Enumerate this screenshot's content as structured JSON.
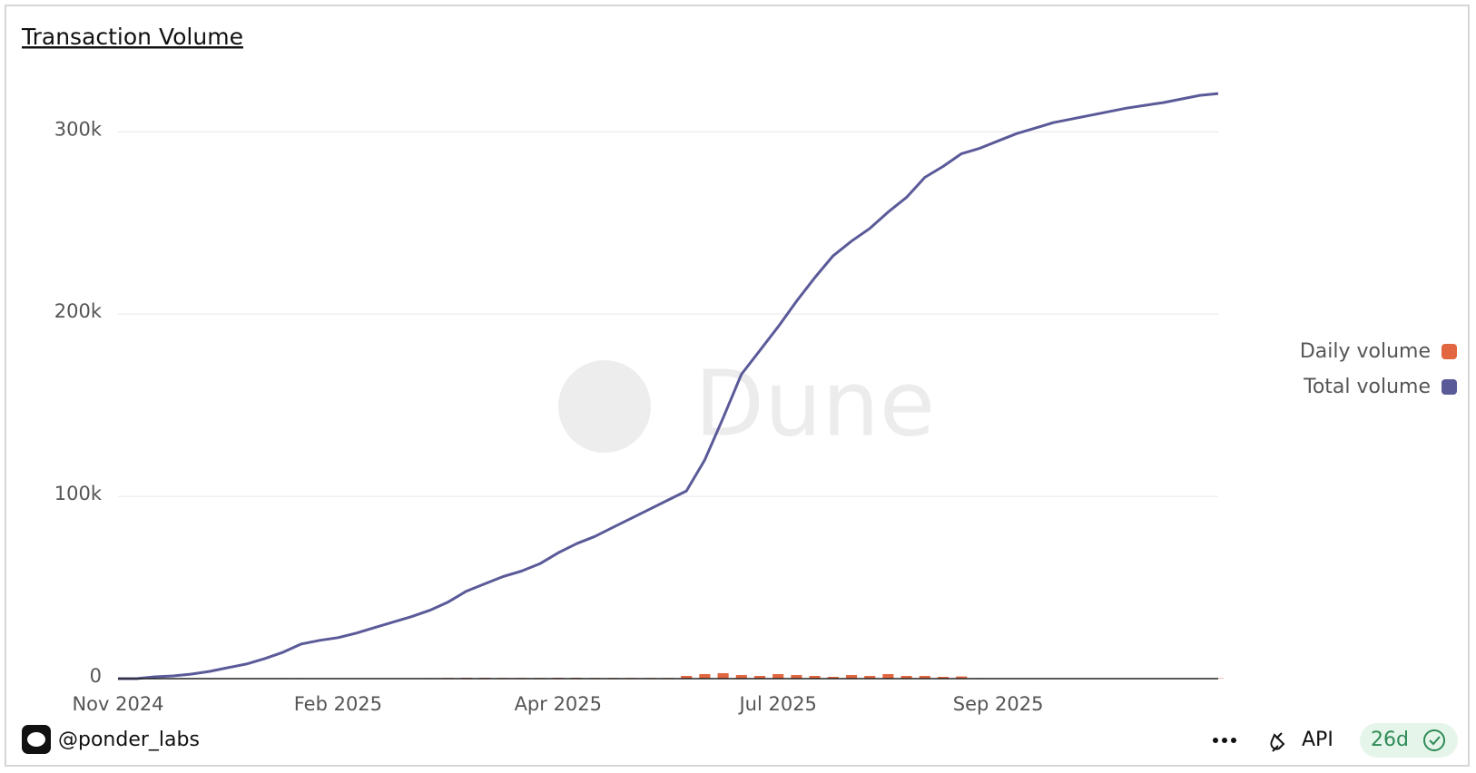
{
  "chart_data": {
    "type": "line_bar",
    "title": "Transaction Volume",
    "categories": [
      "Nov 2024",
      null,
      null,
      null,
      null,
      null,
      null,
      null,
      null,
      null,
      null,
      null,
      "Feb 2025",
      null,
      null,
      null,
      null,
      null,
      null,
      null,
      null,
      null,
      null,
      null,
      "Apr 2025",
      null,
      null,
      null,
      null,
      null,
      null,
      null,
      null,
      null,
      null,
      null,
      "Jul 2025",
      null,
      null,
      null,
      null,
      null,
      null,
      null,
      null,
      null,
      null,
      null,
      "Sep 2025",
      null,
      null,
      null,
      null,
      null,
      null,
      null,
      null,
      null,
      null,
      null,
      null
    ],
    "series": [
      {
        "name": "Daily volume",
        "color": "#e2663f",
        "kind": "bar",
        "values": [
          0,
          100,
          100,
          150,
          150,
          200,
          200,
          250,
          250,
          300,
          300,
          150,
          150,
          200,
          200,
          200,
          250,
          300,
          400,
          500,
          500,
          400,
          400,
          400,
          500,
          500,
          400,
          400,
          400,
          400,
          400,
          1500,
          2500,
          3000,
          2000,
          1500,
          2500,
          2000,
          1500,
          1000,
          2000,
          1500,
          2500,
          1500,
          1500,
          1000,
          1200,
          300,
          200,
          200,
          200,
          150,
          150,
          150,
          150,
          150,
          150,
          150,
          200,
          200,
          200
        ]
      },
      {
        "name": "Total volume",
        "color": "#5b5a99",
        "kind": "line",
        "values": [
          0,
          0,
          1000,
          1500,
          2500,
          4000,
          6000,
          8000,
          11000,
          14500,
          19000,
          21000,
          22500,
          25000,
          28000,
          31000,
          34000,
          37500,
          42000,
          48000,
          52000,
          56000,
          59000,
          63000,
          69000,
          74000,
          78000,
          83000,
          88000,
          93000,
          98000,
          103000,
          120000,
          143000,
          167000,
          180000,
          193000,
          207000,
          220000,
          232000,
          240000,
          247000,
          256000,
          264000,
          275000,
          281000,
          288000,
          291000,
          295000,
          299000,
          302000,
          305000,
          307000,
          309000,
          311000,
          313000,
          314500,
          316000,
          318000,
          320000,
          321000
        ]
      }
    ],
    "ylim": [
      0,
      330000
    ],
    "yticks": [
      0,
      {
        "value": 100000,
        "label": "100k"
      },
      {
        "value": 200000,
        "label": "200k"
      },
      {
        "value": 300000,
        "label": "300k"
      }
    ],
    "grid": true,
    "legend": "right"
  },
  "watermark": "Dune",
  "footer": {
    "user": "@ponder_labs",
    "api": "API",
    "age": "26d"
  }
}
